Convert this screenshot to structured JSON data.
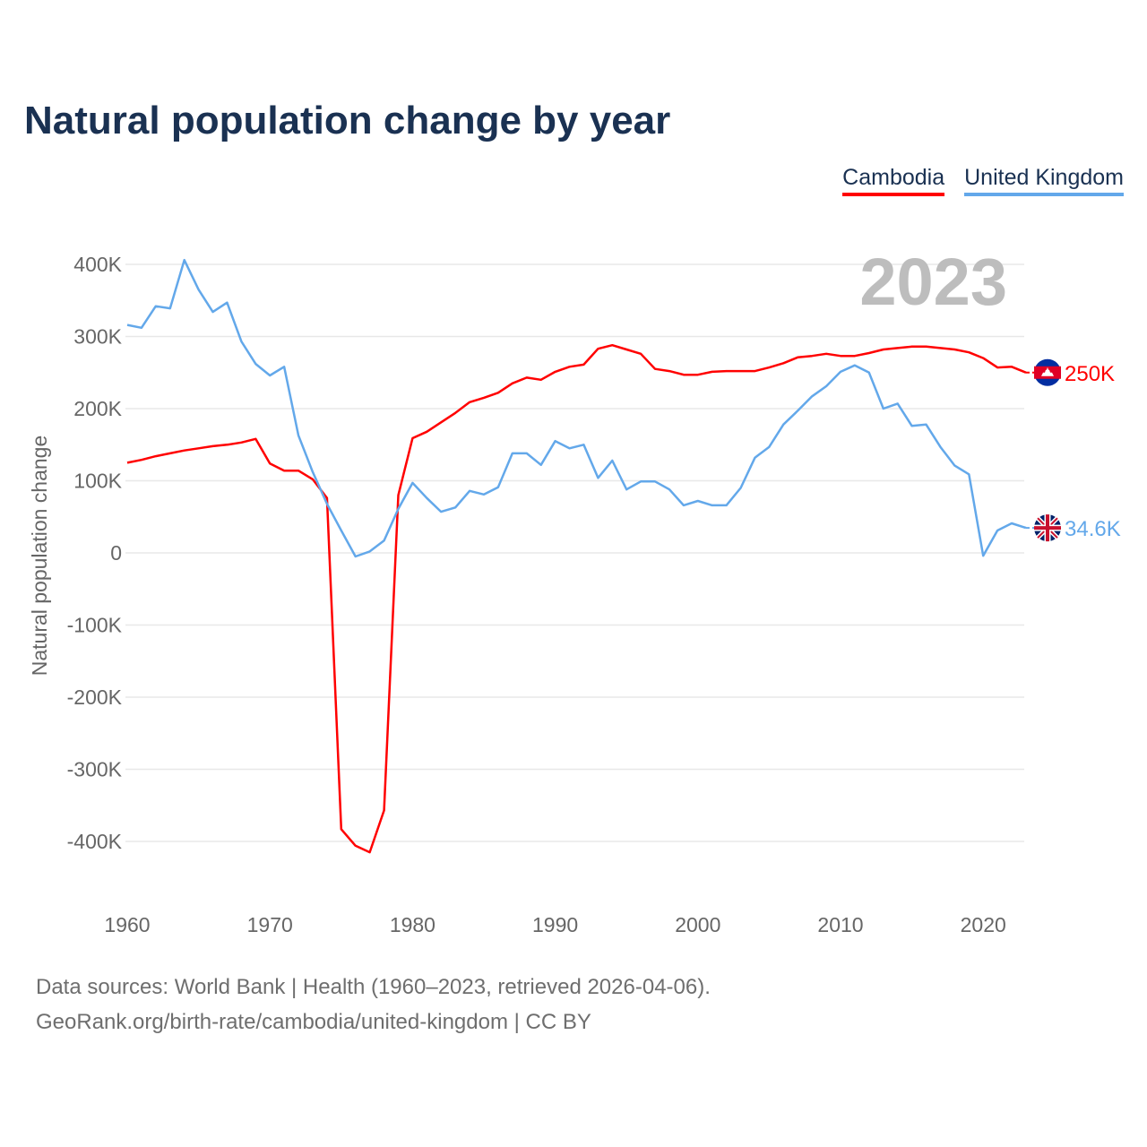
{
  "chart_data": {
    "type": "line",
    "title": "Natural population change by year",
    "ylabel": "Natural population change",
    "xlabel": "",
    "current_year_label": "2023",
    "ylim": [
      -500000,
      400000
    ],
    "yticks": [
      400000,
      300000,
      200000,
      100000,
      0,
      -100000,
      -200000,
      -300000,
      -400000
    ],
    "ytick_labels": [
      "400K",
      "300K",
      "200K",
      "100K",
      "0",
      "-100K",
      "-200K",
      "-300K",
      "-400K"
    ],
    "xlim": [
      1960,
      2023
    ],
    "xticks": [
      1960,
      1970,
      1980,
      1990,
      2000,
      2010,
      2020
    ],
    "xtick_labels": [
      "1960",
      "1970",
      "1980",
      "1990",
      "2000",
      "2010",
      "2020"
    ],
    "grid": true,
    "legend_position": "top-right",
    "x": [
      1960,
      1961,
      1962,
      1963,
      1964,
      1965,
      1966,
      1967,
      1968,
      1969,
      1970,
      1971,
      1972,
      1973,
      1974,
      1975,
      1976,
      1977,
      1978,
      1979,
      1980,
      1981,
      1982,
      1983,
      1984,
      1985,
      1986,
      1987,
      1988,
      1989,
      1990,
      1991,
      1992,
      1993,
      1994,
      1995,
      1996,
      1997,
      1998,
      1999,
      2000,
      2001,
      2002,
      2003,
      2004,
      2005,
      2006,
      2007,
      2008,
      2009,
      2010,
      2011,
      2012,
      2013,
      2014,
      2015,
      2016,
      2017,
      2018,
      2019,
      2020,
      2021,
      2022,
      2023
    ],
    "series": [
      {
        "name": "Cambodia",
        "color": "#ff0000",
        "end_label": "250K",
        "flag": "cambodia-flag",
        "values": [
          125,
          129,
          134,
          138,
          142,
          145,
          148,
          150,
          153,
          158,
          124,
          114,
          114,
          102,
          76,
          -383,
          -406,
          -415,
          -357,
          80,
          159,
          168,
          181,
          194,
          209,
          215,
          222,
          235,
          243,
          240,
          251,
          258,
          261,
          283,
          288,
          282,
          276,
          255,
          252,
          247,
          247,
          251,
          252,
          252,
          252,
          257,
          263,
          271,
          273,
          276,
          273,
          273,
          277,
          282,
          284,
          286,
          286,
          284,
          282,
          278,
          270,
          257,
          258,
          250
        ]
      },
      {
        "name": "United Kingdom",
        "color": "#63a8ea",
        "end_label": "34.6K",
        "flag": "uk-flag",
        "values": [
          316,
          312,
          342,
          339,
          406,
          365,
          334,
          347,
          293,
          262,
          246,
          258,
          163,
          112,
          68,
          31,
          -5,
          2,
          17,
          61,
          97,
          76,
          57,
          63,
          86,
          81,
          91,
          138,
          138,
          122,
          155,
          145,
          150,
          104,
          128,
          88,
          99,
          99,
          88,
          66,
          72,
          66,
          66,
          90,
          132,
          147,
          178,
          197,
          217,
          231,
          251,
          260,
          250,
          200,
          207,
          176,
          178,
          147,
          121,
          109,
          -4,
          31,
          41,
          34.6
        ]
      }
    ],
    "value_unit_multiplier": 1000
  },
  "footer": {
    "line1": "Data sources: World Bank | Health (1960–2023, retrieved 2026-04-06).",
    "line2": "GeoRank.org/birth-rate/cambodia/united-kingdom | CC BY"
  }
}
